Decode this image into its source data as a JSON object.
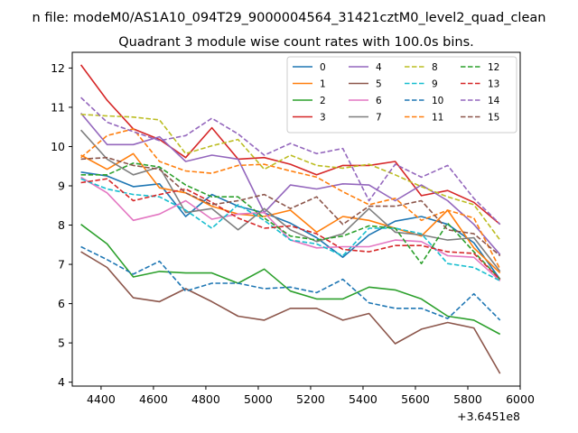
{
  "figure": {
    "suptitle": "n file: modeM0/AS1A10_094T29_9000004564_31421cztM0_level2_quad_clean",
    "title": "Quadrant 3 module wise count rates with 100.0s bins.",
    "offset_label": "+3.6451e8"
  },
  "chart_data": {
    "type": "line",
    "title": "Quadrant 3 module wise count rates with 100.0s bins.",
    "xlabel": "",
    "ylabel": "",
    "x_offset": 364510000,
    "xlim": [
      4290,
      6000
    ],
    "ylim": [
      3.9,
      12.4
    ],
    "xticks": [
      4400,
      4600,
      4800,
      5000,
      5200,
      5400,
      5600,
      5800,
      6000
    ],
    "yticks": [
      4,
      5,
      6,
      7,
      8,
      9,
      10,
      11,
      12
    ],
    "grid": false,
    "legend": {
      "location": "upper right",
      "columns": 4
    },
    "x": [
      4323,
      4423,
      4523,
      4623,
      4723,
      4823,
      4923,
      5023,
      5123,
      5223,
      5323,
      5423,
      5523,
      5623,
      5723,
      5823,
      5923
    ],
    "series": [
      {
        "name": "0",
        "color": "#1f77b4",
        "dash": "solid",
        "values": [
          9.35,
          9.25,
          8.98,
          9.05,
          8.22,
          8.78,
          8.48,
          8.31,
          8.05,
          7.68,
          7.18,
          7.75,
          8.1,
          8.22,
          8.02,
          7.55,
          6.62
        ]
      },
      {
        "name": "1",
        "color": "#ff7f0e",
        "dash": "solid",
        "values": [
          9.78,
          9.42,
          9.82,
          8.95,
          8.82,
          8.48,
          8.28,
          8.22,
          8.38,
          7.82,
          8.22,
          8.12,
          7.92,
          7.72,
          8.38,
          7.42,
          6.78
        ]
      },
      {
        "name": "2",
        "color": "#2ca02c",
        "dash": "solid",
        "values": [
          8.02,
          7.52,
          6.68,
          6.82,
          6.78,
          6.78,
          6.52,
          6.88,
          6.32,
          6.12,
          6.12,
          6.42,
          6.35,
          6.12,
          5.68,
          5.58,
          5.22
        ]
      },
      {
        "name": "3",
        "color": "#d62728",
        "dash": "solid",
        "values": [
          12.08,
          11.18,
          10.45,
          10.18,
          9.72,
          10.48,
          9.68,
          9.72,
          9.55,
          9.28,
          9.52,
          9.52,
          9.62,
          8.75,
          8.88,
          8.58,
          8.02
        ]
      },
      {
        "name": "4",
        "color": "#9467bd",
        "dash": "solid",
        "values": [
          10.85,
          10.05,
          10.05,
          10.25,
          9.62,
          9.78,
          9.68,
          8.32,
          9.02,
          8.92,
          9.05,
          9.02,
          8.62,
          9.02,
          8.62,
          8.02,
          7.25
        ]
      },
      {
        "name": "5",
        "color": "#8c564b",
        "dash": "solid",
        "values": [
          7.32,
          6.92,
          6.15,
          6.05,
          6.38,
          6.05,
          5.68,
          5.58,
          5.88,
          5.88,
          5.58,
          5.75,
          4.98,
          5.35,
          5.52,
          5.38,
          4.22
        ]
      },
      {
        "name": "6",
        "color": "#e377c2",
        "dash": "solid",
        "values": [
          9.22,
          8.82,
          8.12,
          8.28,
          8.62,
          8.15,
          8.28,
          8.32,
          7.62,
          7.42,
          7.45,
          7.45,
          7.62,
          7.58,
          7.22,
          7.18,
          6.58
        ]
      },
      {
        "name": "7",
        "color": "#7f7f7f",
        "dash": "solid",
        "values": [
          10.42,
          9.68,
          9.28,
          9.48,
          8.32,
          8.42,
          7.88,
          8.42,
          7.88,
          7.58,
          7.78,
          8.42,
          7.82,
          7.75,
          7.62,
          7.68,
          6.82
        ]
      },
      {
        "name": "8",
        "color": "#bcbd22",
        "dash": "dashed",
        "values": [
          10.82,
          10.78,
          10.75,
          10.68,
          9.82,
          10.02,
          10.18,
          9.42,
          9.78,
          9.52,
          9.45,
          9.55,
          9.28,
          8.98,
          8.72,
          8.52,
          7.62
        ]
      },
      {
        "name": "9",
        "color": "#17becf",
        "dash": "dashed",
        "values": [
          9.18,
          8.92,
          8.78,
          8.72,
          8.38,
          7.92,
          8.52,
          8.12,
          7.62,
          7.52,
          7.22,
          7.92,
          7.92,
          7.78,
          7.02,
          6.92,
          6.58
        ]
      },
      {
        "name": "10",
        "color": "#1f77b4",
        "dash": "dashed",
        "values": [
          7.45,
          7.12,
          6.75,
          7.08,
          6.32,
          6.52,
          6.52,
          6.38,
          6.42,
          6.28,
          6.62,
          6.02,
          5.88,
          5.88,
          5.62,
          6.25,
          5.58
        ]
      },
      {
        "name": "11",
        "color": "#ff7f0e",
        "dash": "dashed",
        "values": [
          9.72,
          10.28,
          10.45,
          9.62,
          9.38,
          9.32,
          9.52,
          9.55,
          9.38,
          9.22,
          8.85,
          8.52,
          8.68,
          8.12,
          8.38,
          8.18,
          6.88
        ]
      },
      {
        "name": "12",
        "color": "#2ca02c",
        "dash": "dashed",
        "values": [
          9.28,
          9.28,
          9.58,
          9.48,
          9.02,
          8.72,
          8.72,
          8.18,
          7.72,
          7.62,
          7.72,
          7.98,
          7.92,
          7.02,
          8.05,
          7.32,
          6.62
        ]
      },
      {
        "name": "13",
        "color": "#d62728",
        "dash": "dashed",
        "values": [
          9.08,
          9.18,
          8.62,
          8.78,
          8.92,
          8.58,
          8.18,
          7.92,
          7.98,
          7.78,
          7.38,
          7.32,
          7.48,
          7.48,
          7.32,
          7.28,
          6.62
        ]
      },
      {
        "name": "14",
        "color": "#9467bd",
        "dash": "dashed",
        "values": [
          11.25,
          10.62,
          10.38,
          10.15,
          10.28,
          10.72,
          10.32,
          9.78,
          10.08,
          9.82,
          9.95,
          8.62,
          9.55,
          9.22,
          9.52,
          8.68,
          8.02
        ]
      },
      {
        "name": "15",
        "color": "#8c564b",
        "dash": "dashed",
        "values": [
          9.68,
          9.72,
          9.52,
          9.42,
          8.82,
          8.52,
          8.62,
          8.78,
          8.42,
          8.72,
          8.02,
          8.48,
          8.48,
          8.62,
          7.88,
          7.78,
          7.22
        ]
      }
    ]
  }
}
